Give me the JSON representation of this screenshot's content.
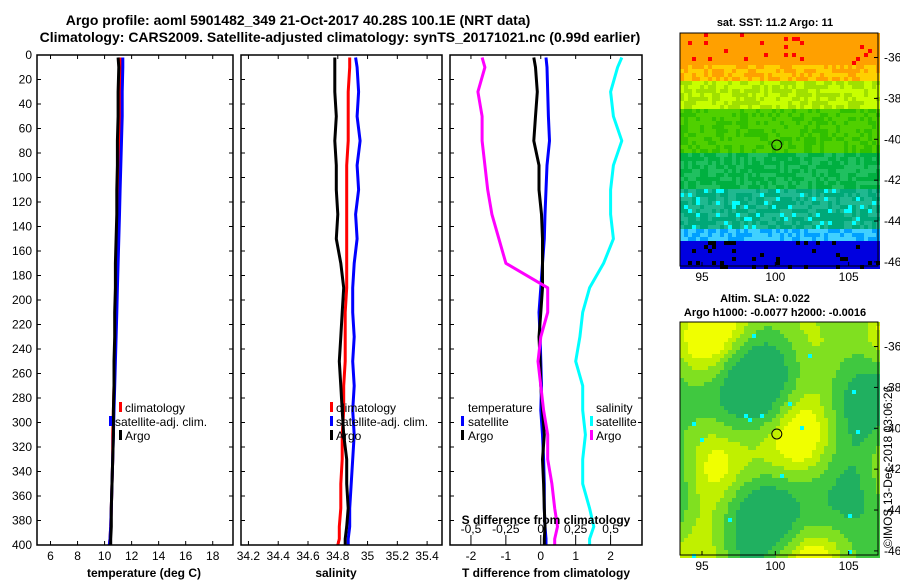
{
  "title_line1": "Argo profile: aoml 5901482_349 21-Oct-2017 40.28S 100.1E (NRT data)",
  "title_line2": "Climatology: CARS2009. Satellite-adjusted climatology: synTS_20171021.nc (0.99d earlier)",
  "y_ticks": [
    "0",
    "20",
    "40",
    "60",
    "80",
    "100",
    "120",
    "140",
    "160",
    "180",
    "200",
    "220",
    "240",
    "260",
    "280",
    "300",
    "320",
    "340",
    "360",
    "380",
    "400"
  ],
  "chart_data": [
    {
      "type": "line",
      "name": "temperature",
      "xlabel": "temperature (deg C)",
      "xlim": [
        5,
        19.5
      ],
      "ylim": [
        400,
        0
      ],
      "x_ticks": [
        "6",
        "8",
        "10",
        "12",
        "14",
        "16",
        "18"
      ],
      "legend": [
        "climatology",
        "satellite-adj. clim.",
        "Argo"
      ],
      "series": [
        {
          "name": "climatology",
          "color": "#ff0000",
          "x": [
            11.2,
            11.2,
            11.2,
            11.15,
            11.1,
            11.1,
            11.05,
            11.0,
            11.0,
            10.95,
            10.9,
            10.85,
            10.8,
            10.75,
            10.7,
            10.65,
            10.6,
            10.6,
            10.55,
            10.5,
            10.45,
            10.4,
            10.35
          ],
          "y": [
            2,
            10,
            30,
            50,
            70,
            90,
            110,
            130,
            150,
            170,
            190,
            210,
            230,
            250,
            270,
            290,
            310,
            330,
            350,
            370,
            385,
            395,
            400
          ]
        },
        {
          "name": "satellite-adj. clim.",
          "color": "#0000ff",
          "x": [
            11.35,
            11.35,
            11.3,
            11.3,
            11.25,
            11.2,
            11.15,
            11.1,
            11.05,
            11.0,
            10.95,
            10.9,
            10.85,
            10.8,
            10.75,
            10.7,
            10.65,
            10.6,
            10.55,
            10.5,
            10.45,
            10.4,
            10.35
          ],
          "y": [
            2,
            10,
            30,
            50,
            70,
            90,
            110,
            130,
            150,
            170,
            190,
            210,
            230,
            250,
            270,
            290,
            310,
            330,
            350,
            370,
            385,
            395,
            400
          ]
        },
        {
          "name": "Argo",
          "color": "#000000",
          "x": [
            11.0,
            11.05,
            11.0,
            11.0,
            10.95,
            10.95,
            10.9,
            10.9,
            10.85,
            10.8,
            10.8,
            10.75,
            10.75,
            10.7,
            10.7,
            10.65,
            10.65,
            10.6,
            10.55,
            10.5,
            10.5,
            10.45,
            10.45
          ],
          "y": [
            2,
            10,
            30,
            50,
            70,
            90,
            110,
            130,
            150,
            170,
            190,
            210,
            230,
            250,
            270,
            290,
            310,
            330,
            350,
            370,
            385,
            395,
            400
          ]
        }
      ]
    },
    {
      "type": "line",
      "name": "salinity",
      "xlabel": "salinity",
      "xlim": [
        34.15,
        35.5
      ],
      "ylim": [
        400,
        0
      ],
      "x_ticks": [
        "34.2",
        "34.4",
        "34.6",
        "34.8",
        "35",
        "35.2",
        "35.4"
      ],
      "legend": [
        "climatology",
        "satellite-adj. clim.",
        "Argo"
      ],
      "series": [
        {
          "name": "climatology",
          "color": "#ff0000",
          "x": [
            34.88,
            34.88,
            34.87,
            34.87,
            34.87,
            34.86,
            34.86,
            34.86,
            34.86,
            34.86,
            34.86,
            34.85,
            34.85,
            34.85,
            34.84,
            34.84,
            34.83,
            34.83,
            34.82,
            34.82,
            34.81,
            34.81,
            34.8
          ],
          "y": [
            2,
            10,
            30,
            50,
            70,
            90,
            110,
            130,
            150,
            170,
            190,
            210,
            230,
            250,
            270,
            290,
            310,
            330,
            350,
            370,
            385,
            395,
            400
          ]
        },
        {
          "name": "satellite-adj. clim.",
          "color": "#0000ff",
          "x": [
            34.92,
            34.93,
            34.94,
            34.93,
            34.95,
            34.93,
            34.94,
            34.92,
            34.93,
            34.91,
            34.9,
            34.9,
            34.91,
            34.9,
            34.91,
            34.9,
            34.91,
            34.9,
            34.89,
            34.88,
            34.88,
            34.87,
            34.87
          ],
          "y": [
            2,
            10,
            30,
            50,
            70,
            90,
            110,
            130,
            150,
            170,
            190,
            210,
            230,
            250,
            270,
            290,
            310,
            330,
            350,
            370,
            385,
            395,
            400
          ]
        },
        {
          "name": "Argo",
          "color": "#000000",
          "x": [
            34.78,
            34.78,
            34.78,
            34.79,
            34.78,
            34.79,
            34.79,
            34.8,
            34.79,
            34.82,
            34.84,
            34.83,
            34.82,
            34.81,
            34.82,
            34.83,
            34.84,
            34.86,
            34.86,
            34.87,
            34.86,
            34.85,
            34.85
          ],
          "y": [
            2,
            10,
            30,
            50,
            70,
            90,
            110,
            130,
            150,
            170,
            190,
            210,
            230,
            250,
            270,
            290,
            310,
            330,
            350,
            370,
            385,
            395,
            400
          ]
        }
      ]
    },
    {
      "type": "line",
      "name": "difference",
      "xlabel": "T difference from climatology",
      "xlabel_top": "S difference from climatology",
      "xlim": [
        -2.6,
        2.9
      ],
      "ylim": [
        400,
        0
      ],
      "x_ticks": [
        "-2",
        "-1",
        "0",
        "1",
        "2"
      ],
      "s_ticks": [
        "-0.5",
        "-0.25",
        "0",
        "0.25",
        "0.5"
      ],
      "legend_left_title": "temperature",
      "legend_right_title": "salinity",
      "legend_left": [
        "satellite",
        "Argo"
      ],
      "legend_right": [
        "satellite",
        "Argo"
      ],
      "series": [
        {
          "name": "T satellite",
          "color": "#0000ff",
          "x": [
            0.15,
            0.18,
            0.2,
            0.22,
            0.25,
            0.18,
            0.15,
            0.12,
            0.1,
            0.05,
            0.0,
            -0.05,
            -0.02,
            0.0,
            0.02,
            0.0,
            0.05,
            0.08,
            0.1,
            0.1,
            0.12,
            0.15,
            0.15
          ],
          "y": [
            2,
            10,
            30,
            50,
            70,
            90,
            110,
            130,
            150,
            170,
            190,
            210,
            230,
            250,
            270,
            290,
            310,
            330,
            350,
            370,
            385,
            395,
            400
          ]
        },
        {
          "name": "T Argo",
          "color": "#000000",
          "x": [
            -0.2,
            -0.15,
            -0.1,
            -0.15,
            -0.2,
            -0.05,
            -0.05,
            0.02,
            0.05,
            0.05,
            0.05,
            0.0,
            -0.05,
            -0.02,
            0.0,
            0.05,
            0.1,
            0.05,
            0.08,
            0.1,
            0.12,
            0.1,
            0.1
          ],
          "y": [
            2,
            10,
            30,
            50,
            70,
            90,
            110,
            130,
            150,
            170,
            190,
            210,
            230,
            250,
            270,
            290,
            310,
            330,
            350,
            370,
            385,
            395,
            400
          ]
        },
        {
          "name": "S satellite",
          "color": "#00ffff",
          "x": [
            0.58,
            0.55,
            0.5,
            0.52,
            0.58,
            0.52,
            0.5,
            0.5,
            0.52,
            0.45,
            0.35,
            0.3,
            0.28,
            0.25,
            0.3,
            0.3,
            0.32,
            0.3,
            0.3,
            0.35,
            0.38,
            0.35,
            0.35
          ],
          "y": [
            2,
            10,
            30,
            50,
            70,
            90,
            110,
            130,
            150,
            170,
            190,
            210,
            230,
            250,
            270,
            290,
            310,
            330,
            350,
            370,
            385,
            395,
            400
          ]
        },
        {
          "name": "S Argo",
          "color": "#ff00ff",
          "x": [
            -0.42,
            -0.4,
            -0.45,
            -0.42,
            -0.42,
            -0.4,
            -0.38,
            -0.35,
            -0.3,
            -0.25,
            0.05,
            0.05,
            0.0,
            -0.02,
            0.0,
            0.02,
            0.05,
            0.05,
            0.08,
            0.1,
            0.12,
            0.1,
            0.1
          ],
          "y": [
            2,
            10,
            30,
            50,
            70,
            90,
            110,
            130,
            150,
            170,
            190,
            210,
            230,
            250,
            270,
            290,
            310,
            330,
            350,
            370,
            385,
            395,
            400
          ]
        }
      ]
    }
  ],
  "map_sst": {
    "title": "sat. SST: 11.2 Argo: 11",
    "lon_ticks": [
      "95",
      "100",
      "105"
    ],
    "lat_ticks": [
      "-36",
      "-38",
      "-40",
      "-42",
      "-44",
      "-46"
    ]
  },
  "map_sla": {
    "title1": "Altim. SLA: 0.022",
    "title2": "Argo h1000: -0.0077 h2000: -0.0016",
    "lon_ticks": [
      "95",
      "100",
      "105"
    ],
    "lat_ticks": [
      "-36",
      "-38",
      "-40",
      "-42",
      "-44",
      "-46"
    ]
  },
  "credit": "©IMOS 13-Dec-2018 03:06:26",
  "colors": {
    "climatology": "#ff0000",
    "satellite": "#0000ff",
    "argo": "#000000",
    "s_satellite": "#00ffff",
    "s_argo": "#ff00ff"
  }
}
